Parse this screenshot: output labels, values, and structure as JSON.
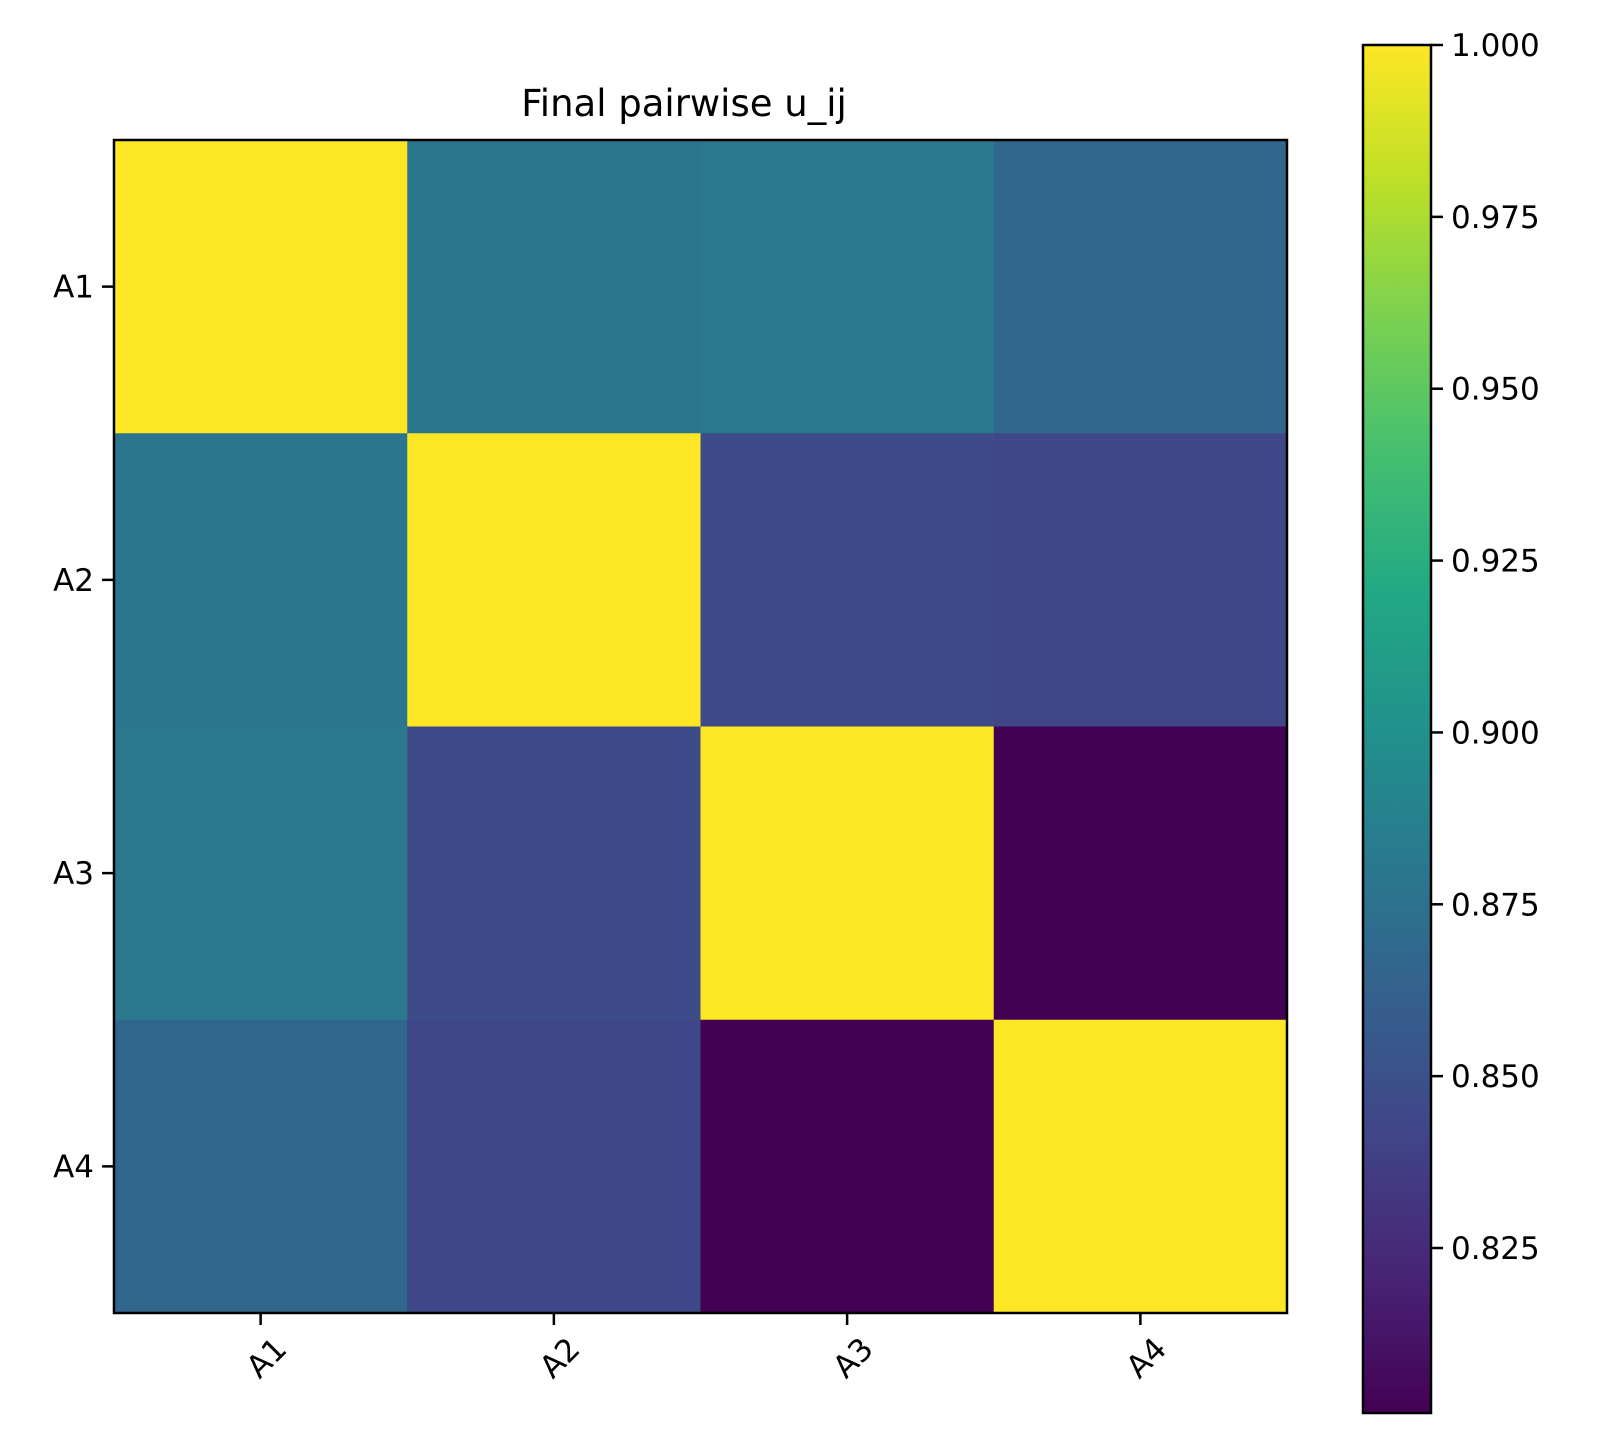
{
  "chart_data": {
    "type": "heatmap",
    "title": "Final pairwise u_ij",
    "x_categories": [
      "A1",
      "A2",
      "A3",
      "A4"
    ],
    "y_categories": [
      "A1",
      "A2",
      "A3",
      "A4"
    ],
    "values": [
      [
        1.0,
        0.879,
        0.881,
        0.867
      ],
      [
        0.879,
        1.0,
        0.846,
        0.843
      ],
      [
        0.881,
        0.846,
        1.0,
        0.801
      ],
      [
        0.867,
        0.843,
        0.801,
        1.0
      ]
    ],
    "colormap": "viridis",
    "color_range": [
      0.801,
      1.0
    ],
    "colorbar_ticks": [
      "1.000",
      "0.975",
      "0.950",
      "0.925",
      "0.900",
      "0.875",
      "0.850",
      "0.825"
    ],
    "colorbar_tick_values": [
      1.0,
      0.975,
      0.95,
      0.925,
      0.9,
      0.875,
      0.85,
      0.825
    ],
    "grid": false,
    "x_tick_rotation": "45 degrees"
  }
}
